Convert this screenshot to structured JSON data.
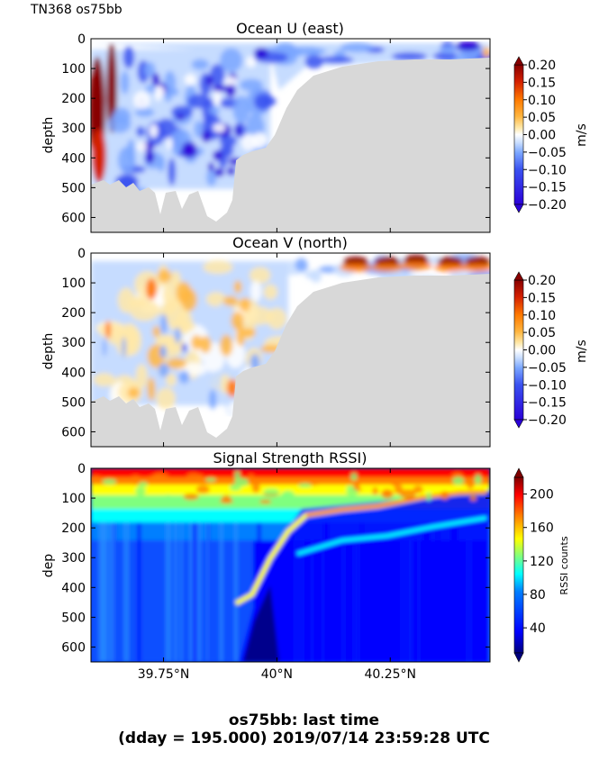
{
  "header": {
    "cruise_label": "TN368 os75bb"
  },
  "footer": {
    "line1": "os75bb: last time",
    "line2": "(dday = 195.000) 2019/07/14 23:59:28 UTC"
  },
  "chart_data": [
    {
      "type": "heatmap",
      "title": "Ocean U (east)",
      "ylabel": "depth",
      "ylim": [
        650,
        0
      ],
      "yticks": [
        "0",
        "100",
        "200",
        "300",
        "400",
        "500",
        "600"
      ],
      "ytick_values": [
        0,
        100,
        200,
        300,
        400,
        500,
        600
      ],
      "xlim": [
        39.59,
        40.47
      ],
      "colorbar": {
        "label": "m/s",
        "ticks": [
          "0.20",
          "0.15",
          "0.10",
          "0.05",
          "0.00",
          "−0.05",
          "−0.10",
          "−0.15",
          "−0.20"
        ],
        "range": [
          -0.2,
          0.2
        ]
      },
      "colors": {
        "bottom": "#d8d8d8",
        "levels": [
          "#2a00d8",
          "#3a52f0",
          "#7aa6ff",
          "#c6dcff",
          "#ffffff",
          "#ffe8a8",
          "#ffb640",
          "#ff7a00",
          "#d42000",
          "#880000"
        ]
      }
    },
    {
      "type": "heatmap",
      "title": "Ocean V (north)",
      "ylabel": "depth",
      "ylim": [
        650,
        0
      ],
      "yticks": [
        "0",
        "100",
        "200",
        "300",
        "400",
        "500",
        "600"
      ],
      "ytick_values": [
        0,
        100,
        200,
        300,
        400,
        500,
        600
      ],
      "xlim": [
        39.59,
        40.47
      ],
      "colorbar": {
        "label": "m/s",
        "ticks": [
          "0.20",
          "0.15",
          "0.10",
          "0.05",
          "0.00",
          "−0.05",
          "−0.10",
          "−0.15",
          "−0.20"
        ],
        "range": [
          -0.2,
          0.2
        ]
      }
    },
    {
      "type": "heatmap",
      "title": "Signal Strength RSSI)",
      "ylabel": "dep",
      "ylim": [
        650,
        0
      ],
      "yticks": [
        "0",
        "100",
        "200",
        "300",
        "400",
        "500",
        "600"
      ],
      "ytick_values": [
        0,
        100,
        200,
        300,
        400,
        500,
        600
      ],
      "xlim": [
        39.59,
        40.47
      ],
      "xticks": [
        "39.75°N",
        "40°N",
        "40.25°N"
      ],
      "xtick_values": [
        39.75,
        40.0,
        40.25
      ],
      "colorbar": {
        "label": "RSSI counts",
        "ticks": [
          "200",
          "160",
          "120",
          "80",
          "40"
        ],
        "tick_values": [
          200,
          160,
          120,
          80,
          40
        ],
        "range": [
          10,
          220
        ]
      },
      "colors": {
        "jet": [
          "#00007f",
          "#0000ff",
          "#007fff",
          "#00ffff",
          "#7fff7f",
          "#ffff00",
          "#ff7f00",
          "#ff0000",
          "#7f0000"
        ]
      }
    }
  ]
}
